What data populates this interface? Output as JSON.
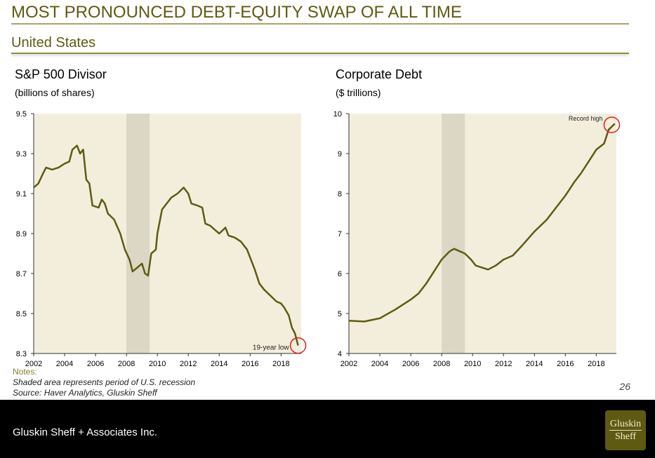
{
  "header": {
    "title": "MOST PRONOUNCED DEBT-EQUITY SWAP OF ALL TIME",
    "subtitle": "United States"
  },
  "colors": {
    "line": "#5f5a12",
    "plot_bg": "#f3eedc",
    "recession": "#dcd7c4",
    "circle": "#e02020"
  },
  "chart_data": [
    {
      "type": "line",
      "title": "S&P 500 Divisor",
      "unit": "(billions of shares)",
      "xlim": [
        2002,
        2019.3
      ],
      "ylim": [
        8.3,
        9.5
      ],
      "xticks": [
        2002,
        2004,
        2006,
        2008,
        2010,
        2012,
        2014,
        2016,
        2018
      ],
      "yticks": [
        "8.3",
        "8.5",
        "8.7",
        "8.9",
        "9.1",
        "9.3",
        "9.5"
      ],
      "recession": [
        2008.0,
        2009.5
      ],
      "annotation": {
        "text": "19-year low",
        "x": 2019.1,
        "y": 8.34
      },
      "x": [
        2002.0,
        2002.3,
        2002.6,
        2002.8,
        2003.2,
        2003.6,
        2004.0,
        2004.3,
        2004.5,
        2004.8,
        2005.0,
        2005.2,
        2005.4,
        2005.6,
        2005.8,
        2006.2,
        2006.4,
        2006.6,
        2006.8,
        2007.2,
        2007.6,
        2007.9,
        2008.2,
        2008.4,
        2008.7,
        2009.0,
        2009.2,
        2009.4,
        2009.6,
        2009.9,
        2010.0,
        2010.3,
        2010.6,
        2010.9,
        2011.3,
        2011.7,
        2012.0,
        2012.2,
        2012.6,
        2012.9,
        2013.1,
        2013.4,
        2013.7,
        2014.0,
        2014.4,
        2014.6,
        2015.0,
        2015.4,
        2015.8,
        2016.0,
        2016.3,
        2016.6,
        2016.9,
        2017.3,
        2017.7,
        2018.0,
        2018.2,
        2018.5,
        2018.7,
        2018.9,
        2019.1
      ],
      "y": [
        9.13,
        9.15,
        9.2,
        9.23,
        9.22,
        9.23,
        9.25,
        9.26,
        9.32,
        9.34,
        9.3,
        9.32,
        9.17,
        9.15,
        9.04,
        9.03,
        9.07,
        9.05,
        9.0,
        8.97,
        8.9,
        8.82,
        8.77,
        8.71,
        8.73,
        8.75,
        8.7,
        8.69,
        8.8,
        8.82,
        8.9,
        9.02,
        9.05,
        9.08,
        9.1,
        9.13,
        9.1,
        9.05,
        9.04,
        9.03,
        8.95,
        8.94,
        8.92,
        8.9,
        8.93,
        8.89,
        8.88,
        8.86,
        8.82,
        8.78,
        8.72,
        8.65,
        8.62,
        8.59,
        8.56,
        8.55,
        8.53,
        8.49,
        8.43,
        8.4,
        8.34
      ]
    },
    {
      "type": "line",
      "title": "Corporate Debt",
      "unit": "($ trillions)",
      "xlim": [
        2002,
        2019.3
      ],
      "ylim": [
        4,
        10
      ],
      "xticks": [
        2002,
        2004,
        2006,
        2008,
        2010,
        2012,
        2014,
        2016,
        2018
      ],
      "yticks": [
        "4",
        "5",
        "6",
        "7",
        "8",
        "9",
        "10"
      ],
      "recession": [
        2008.0,
        2009.5
      ],
      "annotation": {
        "text": "Record high",
        "x": 2019.0,
        "y": 9.72
      },
      "x": [
        2002,
        2003,
        2003.6,
        2004,
        2005,
        2006,
        2006.5,
        2007,
        2007.5,
        2008,
        2008.5,
        2008.8,
        2009.5,
        2009.9,
        2010.2,
        2010.6,
        2011,
        2011.5,
        2012,
        2012.6,
        2013.2,
        2014,
        2014.8,
        2015.5,
        2016,
        2016.6,
        2017,
        2017.5,
        2018,
        2018.5,
        2018.8,
        2019.2
      ],
      "y": [
        4.82,
        4.8,
        4.85,
        4.88,
        5.1,
        5.35,
        5.5,
        5.75,
        6.05,
        6.35,
        6.55,
        6.62,
        6.5,
        6.35,
        6.2,
        6.15,
        6.1,
        6.2,
        6.35,
        6.45,
        6.7,
        7.05,
        7.35,
        7.7,
        7.95,
        8.3,
        8.5,
        8.8,
        9.1,
        9.25,
        9.6,
        9.75
      ]
    }
  ],
  "notes": {
    "heading": "Notes:",
    "line1": "Shaded area represents period of U.S. recession",
    "line2": "Source: Haver Analytics, Gluskin Sheff"
  },
  "page_number": "26",
  "footer": {
    "company": "Gluskin Sheff + Associates Inc.",
    "logo_line1": "Gluskin",
    "logo_line2": "Sheff"
  }
}
